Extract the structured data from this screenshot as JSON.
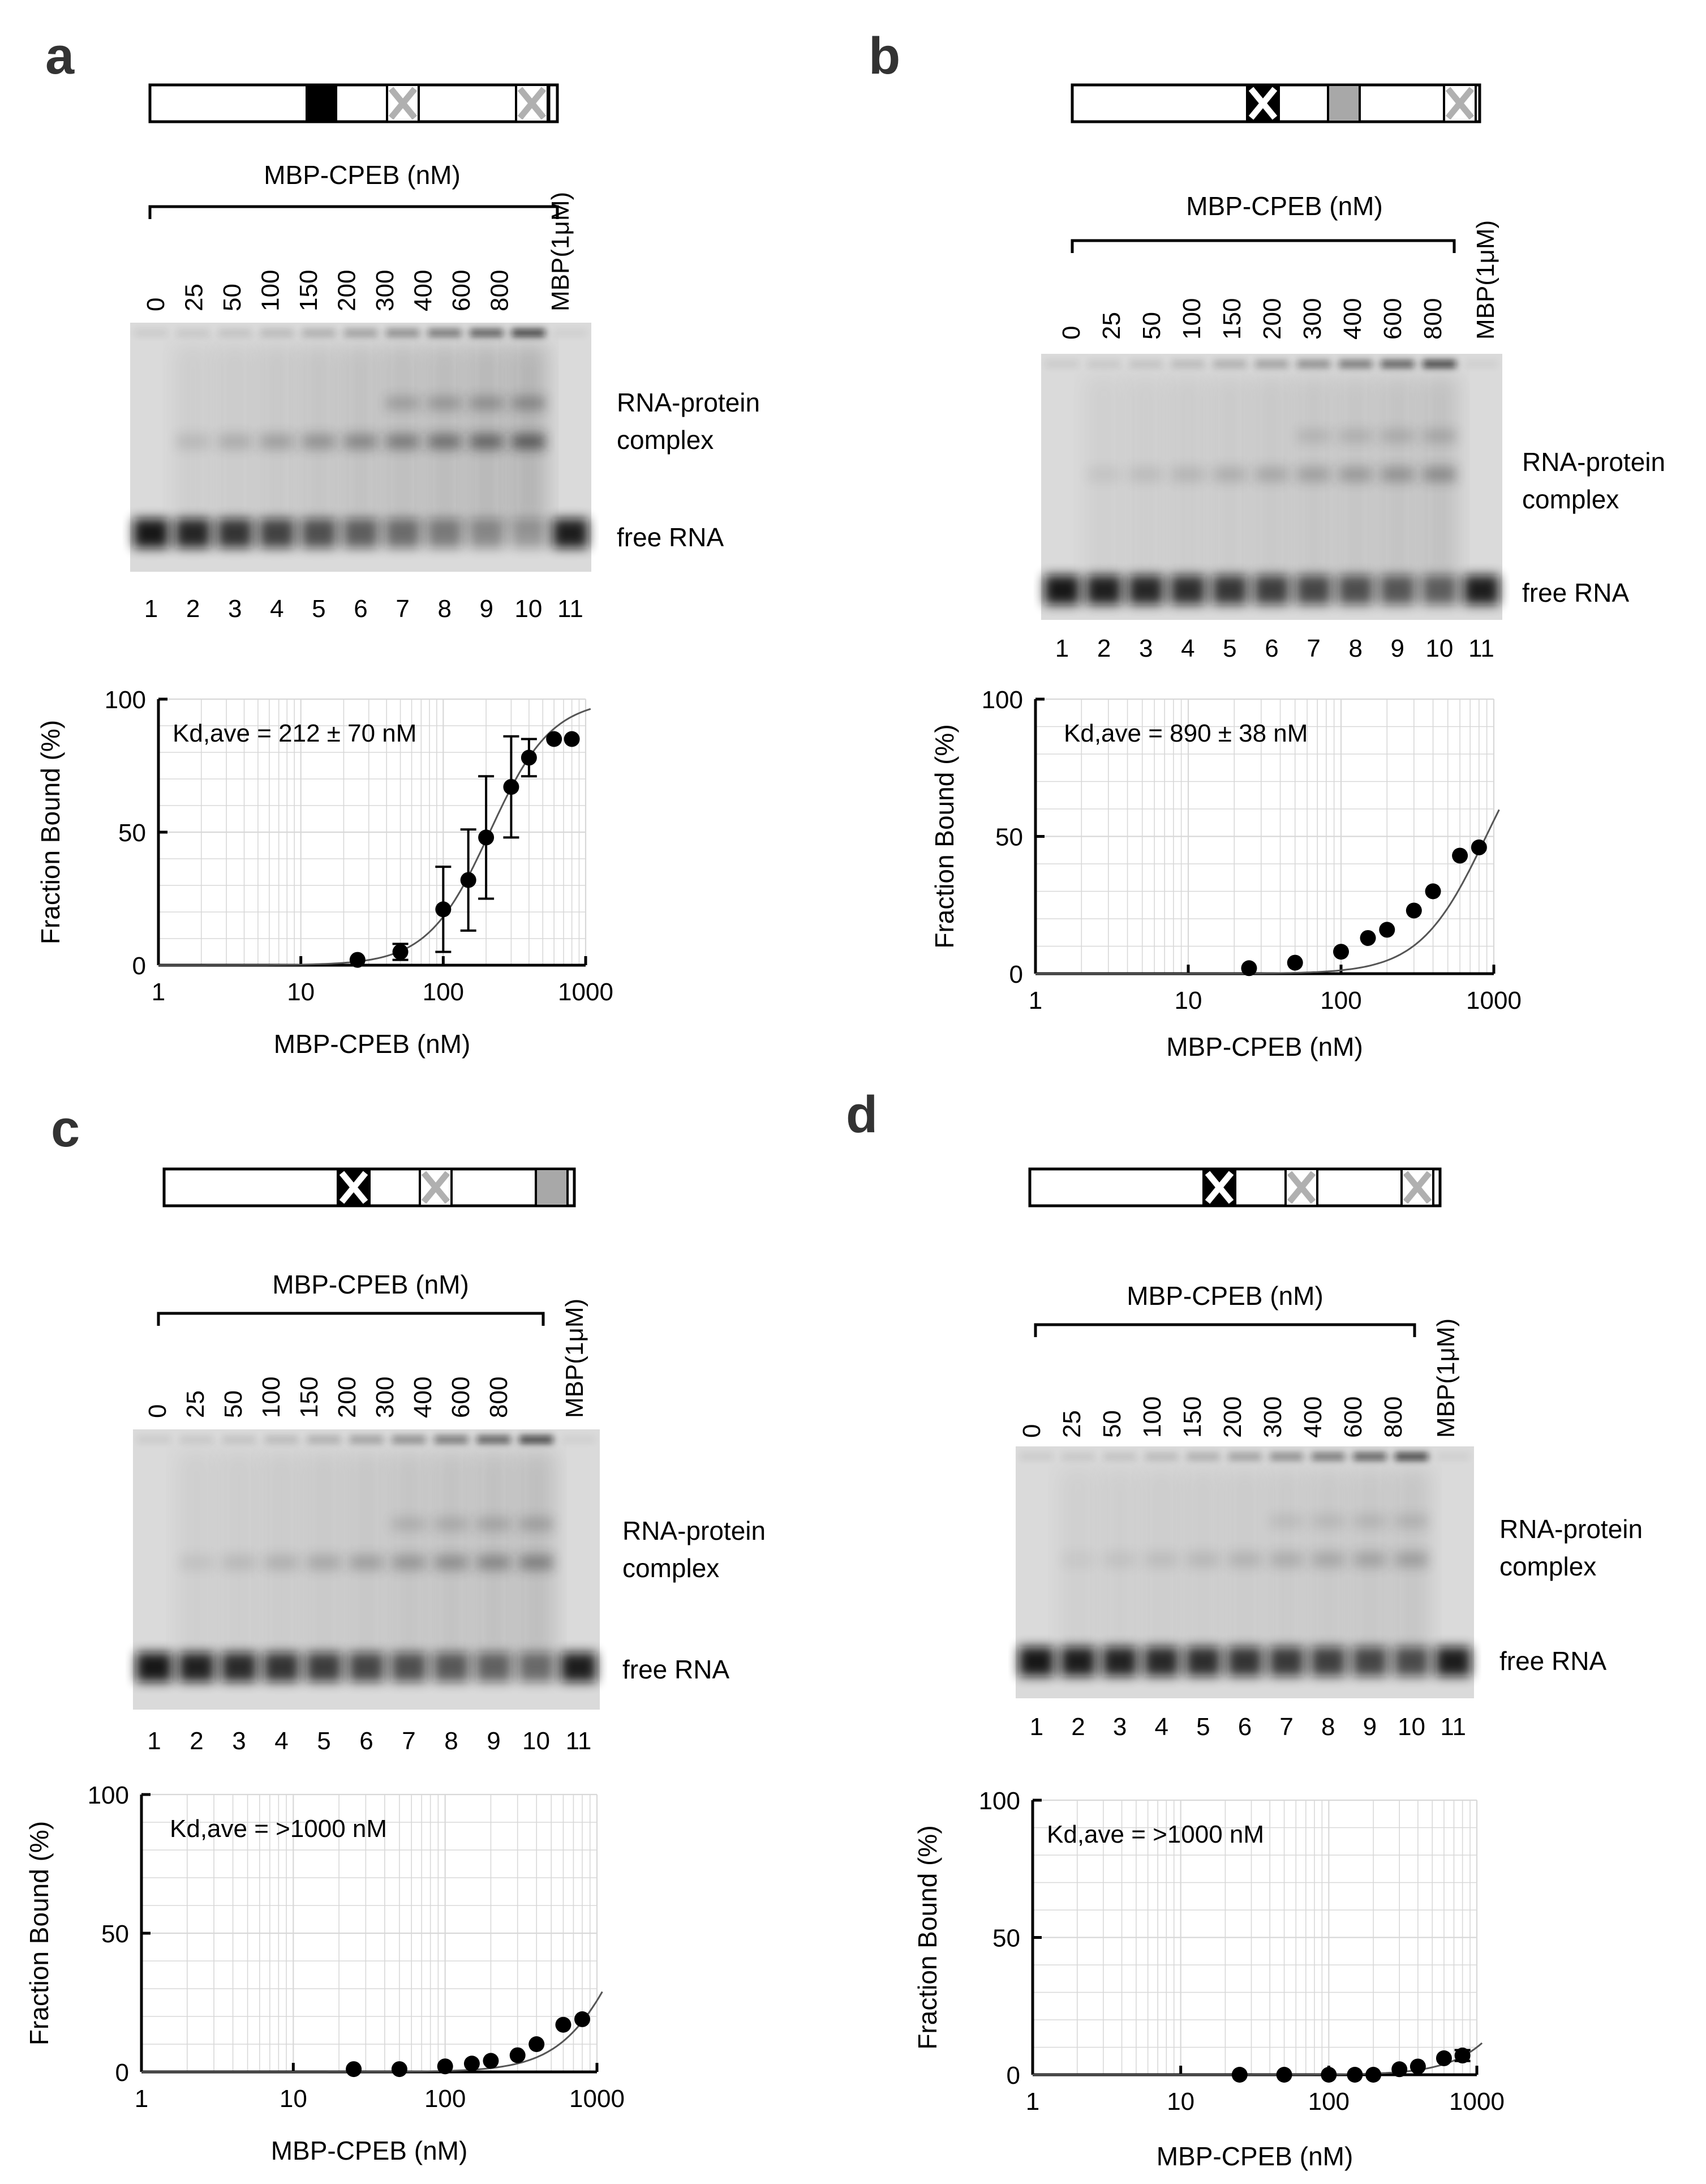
{
  "common": {
    "protein_label": "MBP-CPEB (nM)",
    "control_label": "MBP(1μM)",
    "concentrations": [
      "0",
      "25",
      "50",
      "100",
      "150",
      "200",
      "300",
      "400",
      "600",
      "800"
    ],
    "lane_numbers": [
      "1",
      "2",
      "3",
      "4",
      "5",
      "6",
      "7",
      "8",
      "9",
      "10",
      "11"
    ],
    "complex_label_line1": "RNA-protein",
    "complex_label_line2": "complex",
    "free_label": "free RNA",
    "colors": {
      "ink": "#000000",
      "grey_domain": "#a8a8a8",
      "grid": "#d8d8d8",
      "curve": "#555555"
    }
  },
  "panels": [
    {
      "letter": "a",
      "construct": [
        "black-box",
        "grey-x",
        "grey-x"
      ]
    },
    {
      "letter": "b",
      "construct": [
        "black-x",
        "grey-box",
        "grey-x"
      ]
    },
    {
      "letter": "c",
      "construct": [
        "black-x",
        "grey-x",
        "grey-box"
      ]
    },
    {
      "letter": "d",
      "construct": [
        "black-x",
        "grey-x",
        "grey-x"
      ]
    }
  ],
  "chart_data": [
    {
      "panel": "a",
      "type": "scatter",
      "annotation": "Kd,ave = 212  ± 70 nM",
      "xlabel": "MBP-CPEB (nM)",
      "ylabel": "Fraction Bound (%)",
      "xscale": "log",
      "xlim": [
        1,
        1000
      ],
      "ylim": [
        0,
        100
      ],
      "xticks": [
        "1",
        "10",
        "100",
        "1000"
      ],
      "yticks": [
        "0",
        "50",
        "100"
      ],
      "x": [
        25,
        50,
        100,
        150,
        200,
        300,
        400,
        600,
        800
      ],
      "y": [
        2,
        5,
        21,
        32,
        48,
        67,
        78,
        85,
        85
      ],
      "err": [
        0,
        3,
        16,
        19,
        23,
        19,
        7,
        0,
        0
      ],
      "fit": {
        "kd": 212,
        "hill": 2,
        "bmax": 100
      }
    },
    {
      "panel": "b",
      "type": "scatter",
      "annotation": "Kd,ave = 890  ± 38 nM",
      "xlabel": "MBP-CPEB (nM)",
      "ylabel": "Fraction Bound (%)",
      "xscale": "log",
      "xlim": [
        1,
        1000
      ],
      "ylim": [
        0,
        100
      ],
      "xticks": [
        "1",
        "10",
        "100",
        "1000"
      ],
      "yticks": [
        "0",
        "50",
        "100"
      ],
      "x": [
        25,
        50,
        100,
        150,
        200,
        300,
        400,
        600,
        800
      ],
      "y": [
        2,
        4,
        8,
        13,
        16,
        23,
        30,
        43,
        46
      ],
      "err": [
        0,
        0,
        0,
        0,
        0,
        0,
        0,
        0,
        0
      ],
      "fit": {
        "kd": 890,
        "hill": 2,
        "bmax": 100
      }
    },
    {
      "panel": "c",
      "type": "scatter",
      "annotation": "Kd,ave = >1000 nM",
      "xlabel": "MBP-CPEB (nM)",
      "ylabel": "Fraction Bound (%)",
      "xscale": "log",
      "xlim": [
        1,
        1000
      ],
      "ylim": [
        0,
        100
      ],
      "xticks": [
        "1",
        "10",
        "100",
        "1000"
      ],
      "yticks": [
        "0",
        "50",
        "100"
      ],
      "x": [
        25,
        50,
        100,
        150,
        200,
        300,
        400,
        600,
        800
      ],
      "y": [
        1,
        1,
        2,
        3,
        4,
        6,
        10,
        17,
        19
      ],
      "err": [
        0,
        0,
        0,
        0,
        0,
        0,
        0,
        0,
        0
      ],
      "fit": {
        "kd": 1700,
        "hill": 2,
        "bmax": 100
      }
    },
    {
      "panel": "d",
      "type": "scatter",
      "annotation": "Kd,ave = >1000 nM",
      "xlabel": "MBP-CPEB (nM)",
      "ylabel": "Fraction Bound (%)",
      "xscale": "log",
      "xlim": [
        1,
        1000
      ],
      "ylim": [
        0,
        100
      ],
      "xticks": [
        "1",
        "10",
        "100",
        "1000"
      ],
      "yticks": [
        "0",
        "50",
        "100"
      ],
      "x": [
        25,
        50,
        100,
        150,
        200,
        300,
        400,
        600,
        800
      ],
      "y": [
        0,
        0,
        0,
        0,
        0,
        2,
        3,
        6,
        7
      ],
      "err": [
        0,
        0,
        0,
        0,
        0,
        0,
        0,
        0,
        2
      ],
      "fit": {
        "kd": 3000,
        "hill": 2,
        "bmax": 100
      }
    }
  ]
}
